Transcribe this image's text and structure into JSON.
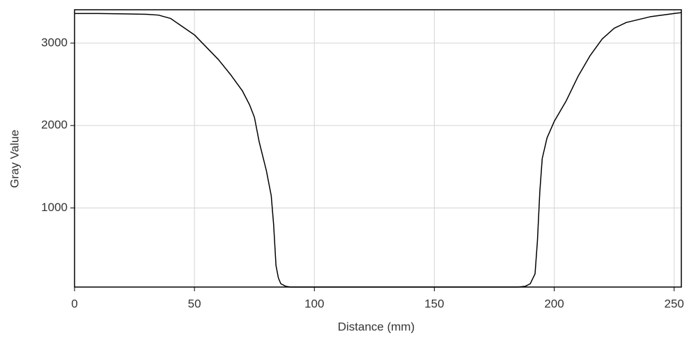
{
  "chart_data": {
    "type": "line",
    "x_label": "Distance (mm)",
    "y_label": "Gray Value",
    "x": [
      0,
      10,
      20,
      30,
      35,
      40,
      45,
      50,
      55,
      60,
      65,
      70,
      73,
      75,
      77,
      80,
      82,
      83,
      84,
      85,
      86,
      88,
      90,
      100,
      120,
      150,
      185,
      188,
      190,
      192,
      193,
      194,
      195,
      197,
      200,
      205,
      210,
      215,
      220,
      225,
      230,
      240,
      250,
      253
    ],
    "series": [
      {
        "color": "#000000",
        "values": [
          3360,
          3360,
          3355,
          3350,
          3340,
          3300,
          3200,
          3100,
          2950,
          2800,
          2620,
          2420,
          2250,
          2100,
          1800,
          1450,
          1150,
          800,
          300,
          150,
          80,
          50,
          40,
          40,
          40,
          40,
          40,
          50,
          80,
          200,
          600,
          1200,
          1600,
          1850,
          2050,
          2300,
          2600,
          2850,
          3050,
          3180,
          3250,
          3320,
          3360,
          3370
        ]
      }
    ],
    "xlim": [
      0,
      253
    ],
    "ylim": [
      40,
      3405
    ],
    "xticks": [
      0,
      50,
      100,
      150,
      200,
      250
    ],
    "yticks": [
      1000,
      2000,
      3000
    ],
    "grid": true
  }
}
